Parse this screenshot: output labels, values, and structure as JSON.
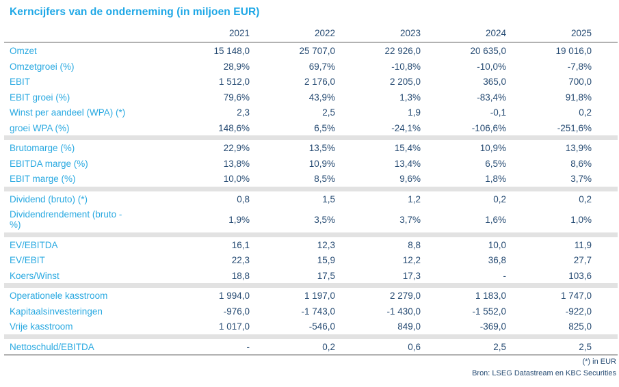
{
  "title": "Kerncijfers van de onderneming (in miljoen EUR)",
  "colors": {
    "accent_cyan": "#29a9e1",
    "value_navy": "#254a72",
    "divider_band": "#e2e2e2",
    "rule_line": "#b2b2b2"
  },
  "years": [
    "2021",
    "2022",
    "2023",
    "2024",
    "2025"
  ],
  "sections": [
    {
      "rows": [
        {
          "label": "Omzet",
          "values": [
            "15 148,0",
            "25 707,0",
            "22 926,0",
            "20 635,0",
            "19 016,0"
          ]
        },
        {
          "label": "Omzetgroei (%)",
          "values": [
            "28,9%",
            "69,7%",
            "-10,8%",
            "-10,0%",
            "-7,8%"
          ]
        },
        {
          "label": "EBIT",
          "values": [
            "1 512,0",
            "2 176,0",
            "2 205,0",
            "365,0",
            "700,0"
          ]
        },
        {
          "label": "EBIT groei (%)",
          "values": [
            "79,6%",
            "43,9%",
            "1,3%",
            "-83,4%",
            "91,8%"
          ]
        },
        {
          "label": "Winst per aandeel (WPA) (*)",
          "values": [
            "2,3",
            "2,5",
            "1,9",
            "-0,1",
            "0,2"
          ]
        },
        {
          "label": "groei WPA (%)",
          "values": [
            "148,6%",
            "6,5%",
            "-24,1%",
            "-106,6%",
            "-251,6%"
          ]
        }
      ]
    },
    {
      "rows": [
        {
          "label": "Brutomarge (%)",
          "values": [
            "22,9%",
            "13,5%",
            "15,4%",
            "10,9%",
            "13,9%"
          ]
        },
        {
          "label": "EBITDA marge (%)",
          "values": [
            "13,8%",
            "10,9%",
            "13,4%",
            "6,5%",
            "8,6%"
          ]
        },
        {
          "label": "EBIT marge (%)",
          "values": [
            "10,0%",
            "8,5%",
            "9,6%",
            "1,8%",
            "3,7%"
          ]
        }
      ]
    },
    {
      "rows": [
        {
          "label": "Dividend (bruto) (*)",
          "values": [
            "0,8",
            "1,5",
            "1,2",
            "0,2",
            "0,2"
          ]
        },
        {
          "label": "Dividendrendement (bruto -\n%)",
          "values": [
            "1,9%",
            "3,5%",
            "3,7%",
            "1,6%",
            "1,0%"
          ]
        }
      ]
    },
    {
      "rows": [
        {
          "label": "EV/EBITDA",
          "values": [
            "16,1",
            "12,3",
            "8,8",
            "10,0",
            "11,9"
          ]
        },
        {
          "label": "EV/EBIT",
          "values": [
            "22,3",
            "15,9",
            "12,2",
            "36,8",
            "27,7"
          ]
        },
        {
          "label": "Koers/Winst",
          "values": [
            "18,8",
            "17,5",
            "17,3",
            "-",
            "103,6"
          ]
        }
      ]
    },
    {
      "rows": [
        {
          "label": "Operationele kasstroom",
          "values": [
            "1 994,0",
            "1 197,0",
            "2 279,0",
            "1 183,0",
            "1 747,0"
          ]
        },
        {
          "label": "Kapitaalsinvesteringen",
          "values": [
            "-976,0",
            "-1 743,0",
            "-1 430,0",
            "-1 552,0",
            "-922,0"
          ]
        },
        {
          "label": "Vrije kasstroom",
          "values": [
            "1 017,0",
            "-546,0",
            "849,0",
            "-369,0",
            "825,0"
          ]
        }
      ]
    },
    {
      "rows": [
        {
          "label": "Nettoschuld/EBITDA",
          "values": [
            "-",
            "0,2",
            "0,6",
            "2,5",
            "2,5"
          ]
        }
      ]
    }
  ],
  "footnotes": {
    "unit_note": "(*) in EUR",
    "source_note": "Bron: LSEG Datastream en KBC Securities"
  }
}
